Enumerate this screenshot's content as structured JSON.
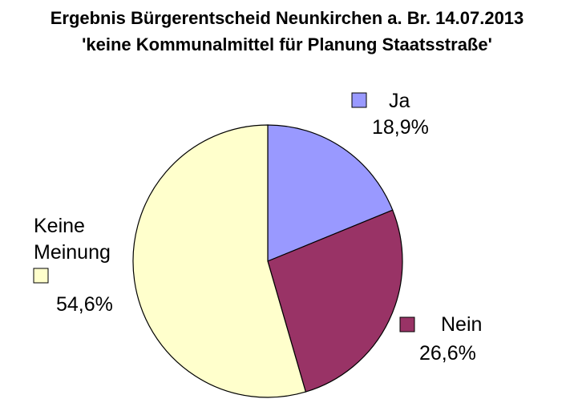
{
  "chart_data": {
    "type": "pie",
    "title": "Ergebnis Bürgerentscheid Neunkirchen a. Br. 14.07.2013",
    "subtitle": "'keine Kommunalmittel für Planung Staatsstraße'",
    "slices": [
      {
        "label": "Ja",
        "value": 18.9,
        "value_label": "18,9%",
        "color": "#9999ff"
      },
      {
        "label": "Nein",
        "value": 26.6,
        "value_label": "26,6%",
        "color": "#993366"
      },
      {
        "label": "Keine Meinung",
        "label_lines": [
          "Keine",
          "Meinung"
        ],
        "value": 54.6,
        "value_label": "54,6%",
        "color": "#ffffcc"
      }
    ],
    "start": "12 o'clock",
    "direction": "clockwise",
    "outline_color": "#000000"
  }
}
